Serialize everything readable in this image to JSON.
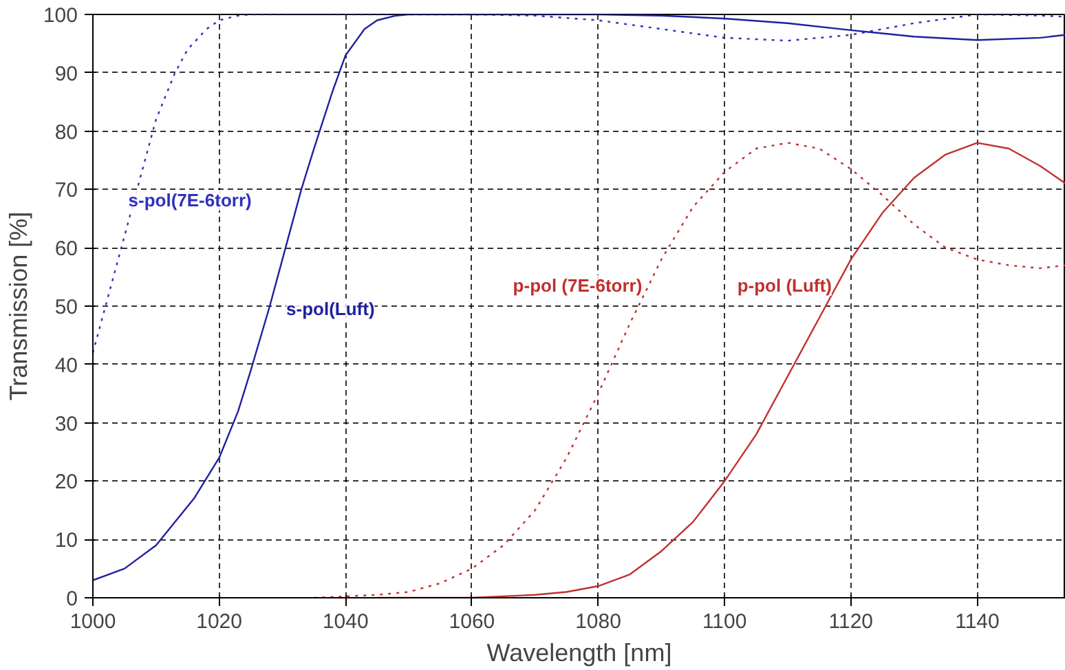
{
  "chart_data": {
    "type": "line",
    "xlabel": "Wavelength [nm]",
    "ylabel": "Transmission [%]",
    "xlim": [
      1000,
      1154
    ],
    "xticks": [
      1000,
      1020,
      1040,
      1060,
      1080,
      1100,
      1120,
      1140
    ],
    "ylim": [
      0,
      100
    ],
    "yticks": [
      0,
      10,
      20,
      30,
      40,
      50,
      60,
      70,
      80,
      90,
      100
    ],
    "grid": true,
    "series": [
      {
        "name": "s-pol(7E-6torr)",
        "color": "#3030c0",
        "line_style": "dotted",
        "x": [
          1000,
          1003,
          1005,
          1008,
          1010,
          1013,
          1015,
          1018,
          1020,
          1023,
          1025,
          1030,
          1060,
          1070,
          1080,
          1090,
          1100,
          1110,
          1120,
          1130,
          1140,
          1150,
          1154
        ],
        "values": [
          42,
          54,
          62,
          74,
          82,
          90,
          94,
          97.5,
          99,
          99.8,
          100,
          100,
          100,
          99.8,
          99,
          97.5,
          96,
          95.5,
          96.5,
          98.5,
          100,
          99.8,
          99.6
        ]
      },
      {
        "name": "s-pol(Luft)",
        "color": "#2020a0",
        "line_style": "solid",
        "x": [
          1000,
          1005,
          1010,
          1013,
          1016,
          1020,
          1023,
          1025,
          1028,
          1030,
          1033,
          1035,
          1038,
          1040,
          1043,
          1045,
          1048,
          1050,
          1080,
          1090,
          1100,
          1110,
          1120,
          1130,
          1140,
          1150,
          1154
        ],
        "values": [
          3,
          5,
          9,
          13,
          17,
          24,
          32,
          39,
          50,
          58,
          70,
          77,
          87,
          93,
          97.5,
          99,
          99.8,
          100,
          100,
          99.8,
          99.3,
          98.5,
          97.3,
          96.2,
          95.6,
          96,
          96.5
        ]
      },
      {
        "name": "p-pol (7E-6torr)",
        "color": "#c03030",
        "line_style": "dotted",
        "x": [
          1035,
          1045,
          1050,
          1055,
          1060,
          1065,
          1070,
          1075,
          1080,
          1085,
          1090,
          1095,
          1100,
          1105,
          1110,
          1115,
          1120,
          1125,
          1130,
          1135,
          1140,
          1145,
          1150,
          1154
        ],
        "values": [
          0,
          0.5,
          1,
          2.5,
          5,
          9,
          15,
          24,
          35,
          47,
          58,
          67,
          73,
          77,
          78,
          77,
          73.5,
          69,
          64,
          60,
          58,
          57,
          56.5,
          57
        ]
      },
      {
        "name": "p-pol (Luft)",
        "color": "#c03030",
        "line_style": "solid",
        "x": [
          1045,
          1060,
          1070,
          1075,
          1080,
          1085,
          1090,
          1095,
          1100,
          1105,
          1110,
          1115,
          1120,
          1125,
          1130,
          1135,
          1140,
          1145,
          1150,
          1154
        ],
        "values": [
          0,
          0,
          0.5,
          1,
          2,
          4,
          8,
          13,
          20,
          28,
          38,
          48,
          58,
          66,
          72,
          76,
          78,
          77,
          74,
          71
        ]
      }
    ]
  }
}
